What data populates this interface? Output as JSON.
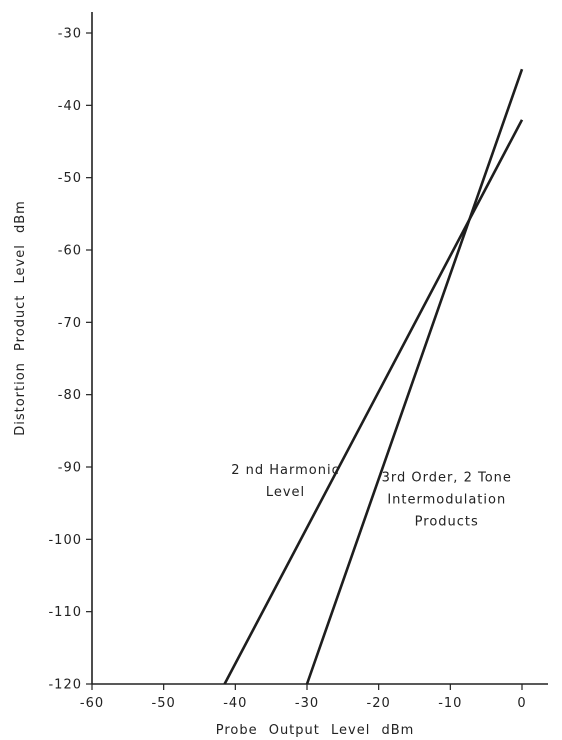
{
  "chart_data": {
    "type": "line",
    "title": "",
    "xlabel": "Probe Output Level dBm",
    "ylabel": "Distortion Product Level dBm",
    "xlim": [
      -60,
      0
    ],
    "ylim": [
      -120,
      -30
    ],
    "x_ticks": [
      -60,
      -50,
      -40,
      -30,
      -20,
      -10,
      0
    ],
    "y_ticks": [
      -30,
      -40,
      -50,
      -60,
      -70,
      -80,
      -90,
      -100,
      -110,
      -120
    ],
    "x_tick_labels": [
      "-60",
      "-50",
      "-40",
      "-30",
      "-20",
      "-10",
      "0"
    ],
    "y_tick_labels": [
      "-30",
      "-40",
      "-50",
      "-60",
      "-70",
      "-80",
      "-90",
      "-100",
      "-110",
      "-120"
    ],
    "grid": false,
    "series": [
      {
        "x": [
          -41.5,
          0
        ],
        "y": [
          -120,
          -42
        ]
      },
      {
        "x": [
          -30,
          0
        ],
        "y": [
          -120,
          -35
        ]
      }
    ],
    "annotations": [
      {
        "lines": [
          "2 nd Harmonic",
          "Level"
        ],
        "x": -33,
        "y": -91,
        "anchor": "middle"
      },
      {
        "lines": [
          "3rd Order, 2 Tone",
          "Intermodulation",
          "Products"
        ],
        "x": -10.5,
        "y": -92,
        "anchor": "middle"
      }
    ],
    "colors": {
      "line": "#1e1e1e",
      "axis": "#222222",
      "text": "#222222"
    }
  }
}
